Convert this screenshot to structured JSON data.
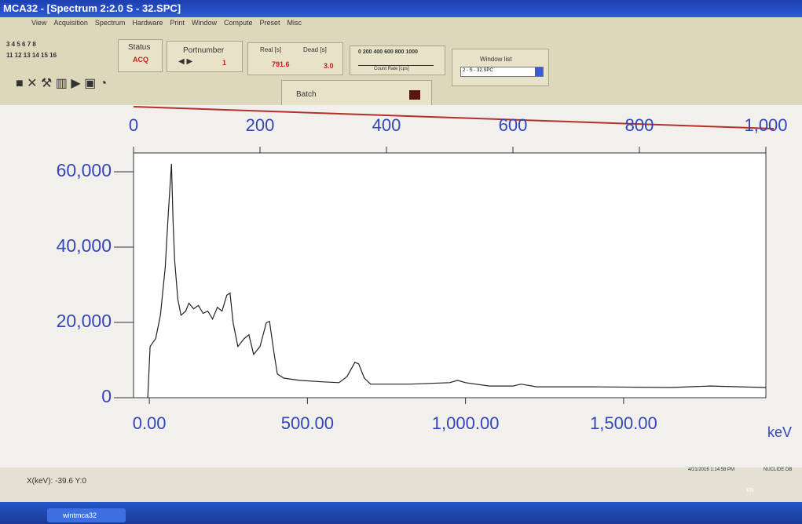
{
  "window": {
    "title": "MCA32 - [Spectrum 2:2.0 S - 32.SPC]"
  },
  "menu": [
    "View",
    "Acquisition",
    "Spectrum",
    "Hardware",
    "Print",
    "Window",
    "Compute",
    "Preset",
    "Misc"
  ],
  "toolbar": {
    "keys_top": "3 4 5 6 7 8",
    "keys_bottom": "11 12 13 14 15 16",
    "status_label": "Status",
    "status_value": "ACQ",
    "port_label": "Portnumber",
    "port_value": "1",
    "real_label": "Real [s]",
    "dead_label": "Dead [s]",
    "real_value": "791.6",
    "dead_value": "3.0",
    "rate_scale": "0 200 400 600 800 1000",
    "rate_label": "Count Rate [cps]",
    "window_list_label": "Window list",
    "window_list_value": "2 - S - 32.SPC",
    "batch_label": "Batch"
  },
  "chart_data": {
    "type": "line",
    "xlabel": "keV",
    "color": "#222222",
    "x": [
      -5,
      2.5,
      20,
      35,
      50,
      60,
      70,
      75,
      80,
      90,
      100,
      115,
      125,
      140,
      155,
      170,
      185,
      200,
      215,
      230,
      245,
      255,
      265,
      280,
      300,
      315,
      330,
      350,
      370,
      380,
      395,
      405,
      425,
      475,
      550,
      600,
      625,
      650,
      662,
      680,
      700,
      825,
      950,
      975,
      1000,
      1075,
      1150,
      1175,
      1225,
      1400,
      1650,
      1775,
      1950
    ],
    "values": [
      0,
      13600,
      15700,
      21900,
      34500,
      49100,
      62100,
      47000,
      36600,
      26100,
      21900,
      23000,
      25100,
      23600,
      24500,
      22400,
      23000,
      20900,
      24000,
      23000,
      27200,
      27800,
      19900,
      13600,
      15700,
      16700,
      11500,
      13600,
      19900,
      20300,
      11500,
      6300,
      5200,
      4600,
      4200,
      4000,
      5600,
      9400,
      9000,
      5200,
      3600,
      3600,
      4000,
      4600,
      4000,
      3100,
      3100,
      3600,
      2900,
      2900,
      2700,
      3100,
      2700
    ],
    "xlim": [
      -50,
      1950
    ],
    "xticks": [
      {
        "value": 0,
        "label": "0.00"
      },
      {
        "value": 500,
        "label": "500.00"
      },
      {
        "value": 1000,
        "label": "1,000.00"
      },
      {
        "value": 1500,
        "label": "1,500.00"
      }
    ],
    "x2lim": [
      0,
      1000
    ],
    "x2ticks": [
      0,
      200,
      400,
      600,
      800,
      {
        "value": 1000,
        "label": "1,000"
      }
    ],
    "ylim": [
      0,
      65000
    ],
    "yticks": [
      0,
      {
        "value": 20000,
        "label": "20,000"
      },
      {
        "value": 40000,
        "label": "40,000"
      },
      {
        "value": 60000,
        "label": "60,000"
      }
    ]
  },
  "status": {
    "cursor": "X(keV): -39.6  Y:0",
    "datetime": "4/21/2016 1:14:58 PM",
    "db": "NUCLIDE DB"
  },
  "taskbar": {
    "app": "wintmca32",
    "lang": "EN"
  }
}
